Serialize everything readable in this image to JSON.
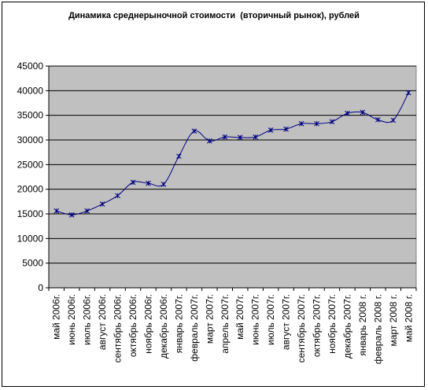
{
  "chart_data": {
    "type": "line",
    "title": "Динамика среднерыночной стоимости  (вторичный рынок), рублей",
    "xlabel": "",
    "ylabel": "",
    "ylim": [
      0,
      45000
    ],
    "yticks": [
      0,
      5000,
      10000,
      15000,
      20000,
      25000,
      30000,
      35000,
      40000,
      45000
    ],
    "grid": true,
    "legend": "none",
    "colors": {
      "plot_area": "#c0c0c0",
      "line": "#000080",
      "gridline": "#000000"
    },
    "categories": [
      "май 2006г.",
      "июнь 2006г.",
      "июль 2006г.",
      "август 2006г.",
      "сентябрь 2006г.",
      "октябрь 2006г.",
      "ноябрь 2006г.",
      "декабрь 2006г.",
      "январь 2007г.",
      "февраль 2007г.",
      "март 2007г.",
      "апрель 2007г.",
      "май 2007г.",
      "июнь 2007г.",
      "июль 2007г.",
      "август 2007г.",
      "сентябрь 2007г.",
      "октябрь 2007г.",
      "ноябрь 2007г.",
      "декабрь 2007г.",
      "январь 2008 г.",
      "февраль 2008 г.",
      "март 2008 г.",
      "май 2008 г."
    ],
    "series": [
      {
        "values": [
          15600,
          14800,
          15600,
          17000,
          18700,
          21400,
          21200,
          21000,
          26700,
          31800,
          29800,
          30600,
          30500,
          30600,
          32000,
          32200,
          33300,
          33300,
          33700,
          35400,
          35600,
          34100,
          34000,
          39600
        ]
      }
    ]
  }
}
